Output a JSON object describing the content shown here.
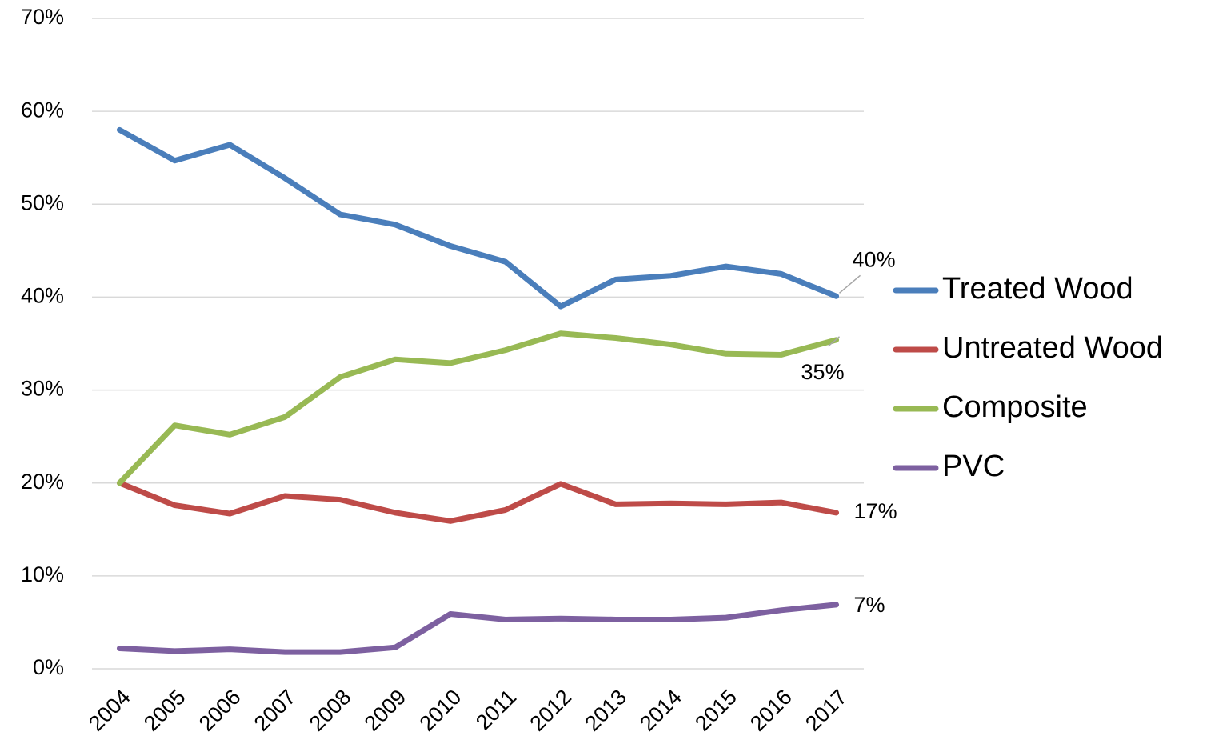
{
  "chart_data": {
    "type": "line",
    "categories": [
      "2004",
      "2005",
      "2006",
      "2007",
      "2008",
      "2009",
      "2010",
      "2011",
      "2012",
      "2013",
      "2014",
      "2015",
      "2016",
      "2017"
    ],
    "ylim": [
      0,
      70
    ],
    "yticks": [
      {
        "value": 0,
        "label": "0%"
      },
      {
        "value": 10,
        "label": "10%"
      },
      {
        "value": 20,
        "label": "20%"
      },
      {
        "value": 30,
        "label": "30%"
      },
      {
        "value": 40,
        "label": "40%"
      },
      {
        "value": 50,
        "label": "50%"
      },
      {
        "value": 60,
        "label": "60%"
      },
      {
        "value": 70,
        "label": "70%"
      }
    ],
    "grid": true,
    "legend": "right",
    "series": [
      {
        "name": "Treated Wood",
        "color": "#4a7ebb",
        "values": [
          58.0,
          54.7,
          56.4,
          52.8,
          48.9,
          47.8,
          45.5,
          43.8,
          39.0,
          41.9,
          42.3,
          43.3,
          42.5,
          40.1
        ],
        "value_labels": [
          null,
          null,
          null,
          null,
          null,
          null,
          null,
          null,
          null,
          null,
          null,
          null,
          null,
          "40%"
        ]
      },
      {
        "name": "Untreated Wood",
        "color": "#be4b48",
        "values": [
          20.0,
          17.6,
          16.7,
          18.6,
          18.2,
          16.8,
          15.9,
          17.1,
          19.9,
          17.7,
          17.8,
          17.7,
          17.9,
          16.8
        ],
        "value_labels": [
          null,
          null,
          null,
          null,
          null,
          null,
          null,
          null,
          null,
          null,
          null,
          null,
          null,
          "17%"
        ]
      },
      {
        "name": "Composite",
        "color": "#98b954",
        "values": [
          20.0,
          26.2,
          25.2,
          27.1,
          31.4,
          33.3,
          32.9,
          34.3,
          36.1,
          35.6,
          34.9,
          33.9,
          33.8,
          35.4
        ],
        "value_labels": [
          null,
          null,
          null,
          null,
          null,
          null,
          null,
          null,
          null,
          null,
          null,
          null,
          null,
          "35%"
        ]
      },
      {
        "name": "PVC",
        "color": "#7d60a0",
        "values": [
          2.2,
          1.9,
          2.1,
          1.8,
          1.8,
          2.3,
          5.9,
          5.3,
          5.4,
          5.3,
          5.3,
          5.5,
          6.3,
          6.9
        ],
        "value_labels": [
          null,
          null,
          null,
          null,
          null,
          null,
          null,
          null,
          null,
          null,
          null,
          null,
          null,
          "7%"
        ]
      }
    ]
  }
}
